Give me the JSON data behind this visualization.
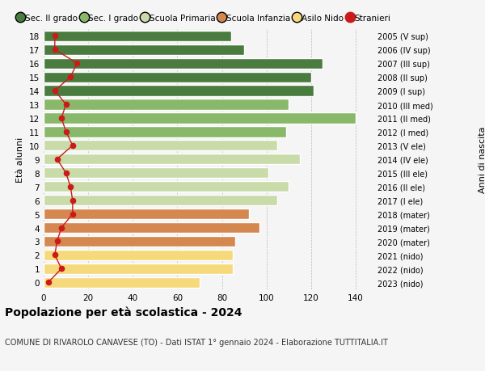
{
  "ages": [
    0,
    1,
    2,
    3,
    4,
    5,
    6,
    7,
    8,
    9,
    10,
    11,
    12,
    13,
    14,
    15,
    16,
    17,
    18
  ],
  "bar_values": [
    70,
    85,
    85,
    86,
    97,
    92,
    105,
    110,
    101,
    115,
    105,
    109,
    140,
    110,
    121,
    120,
    125,
    90,
    84
  ],
  "bar_colors": [
    "#f5d97a",
    "#f5d97a",
    "#f5d97a",
    "#d4874e",
    "#d4874e",
    "#d4874e",
    "#c8dba8",
    "#c8dba8",
    "#c8dba8",
    "#c8dba8",
    "#c8dba8",
    "#8ab86a",
    "#8ab86a",
    "#8ab86a",
    "#4a7c3f",
    "#4a7c3f",
    "#4a7c3f",
    "#4a7c3f",
    "#4a7c3f"
  ],
  "stranieri_values": [
    2,
    8,
    5,
    6,
    8,
    13,
    13,
    12,
    10,
    6,
    13,
    10,
    8,
    10,
    5,
    12,
    15,
    5,
    5
  ],
  "right_labels": [
    "2023 (nido)",
    "2022 (nido)",
    "2021 (nido)",
    "2020 (mater)",
    "2019 (mater)",
    "2018 (mater)",
    "2017 (I ele)",
    "2016 (II ele)",
    "2015 (III ele)",
    "2014 (IV ele)",
    "2013 (V ele)",
    "2012 (I med)",
    "2011 (II med)",
    "2010 (III med)",
    "2009 (I sup)",
    "2008 (II sup)",
    "2007 (III sup)",
    "2006 (IV sup)",
    "2005 (V sup)"
  ],
  "ylabel_left": "Età alunni",
  "ylabel_right": "Anni di nascita",
  "title": "Popolazione per età scolastica - 2024",
  "subtitle": "COMUNE DI RIVAROLO CANAVESE (TO) - Dati ISTAT 1° gennaio 2024 - Elaborazione TUTTITALIA.IT",
  "xlim": [
    0,
    148
  ],
  "xticks": [
    0,
    20,
    40,
    60,
    80,
    100,
    120,
    140
  ],
  "legend_labels": [
    "Sec. II grado",
    "Sec. I grado",
    "Scuola Primaria",
    "Scuola Infanzia",
    "Asilo Nido",
    "Stranieri"
  ],
  "legend_colors": [
    "#4a7c3f",
    "#8ab86a",
    "#c8dba8",
    "#d4874e",
    "#f5d97a",
    "#cc1a1a"
  ],
  "bg_color": "#f5f5f5",
  "bar_height": 0.78
}
